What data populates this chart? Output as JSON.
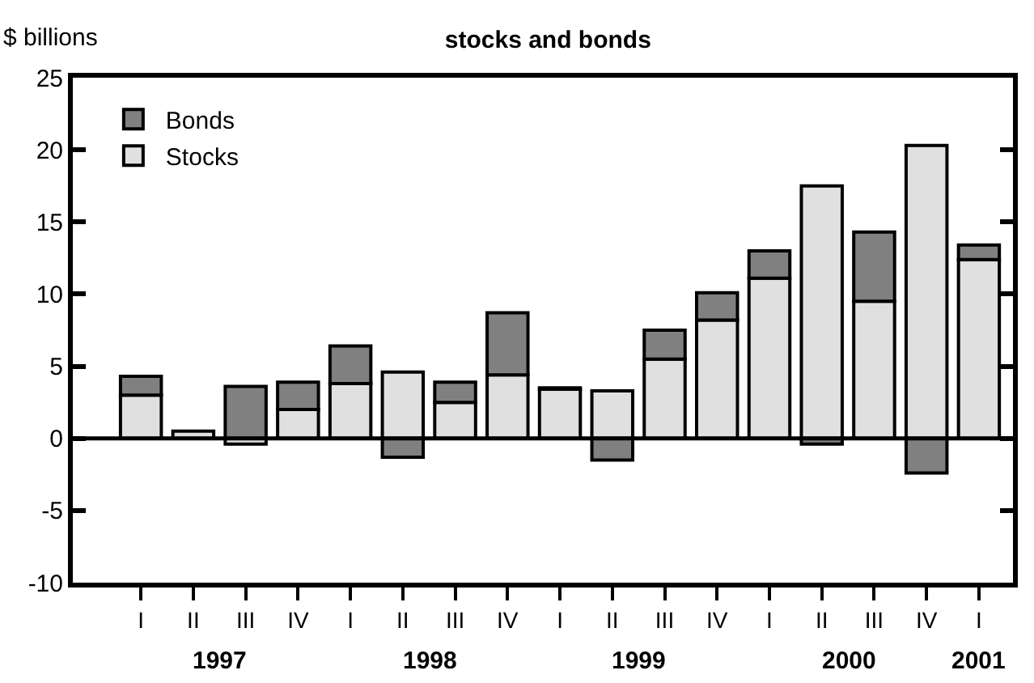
{
  "chart_data": {
    "type": "bar",
    "title": "stocks and bonds",
    "ylabel": "$ billions",
    "categories": [
      "I",
      "II",
      "III",
      "IV",
      "I",
      "II",
      "III",
      "IV",
      "I",
      "II",
      "III",
      "IV",
      "I",
      "II",
      "III",
      "IV",
      "I"
    ],
    "series": [
      {
        "name": "Stocks",
        "color": "#e0e0e0",
        "values": [
          3.0,
          0.5,
          -0.4,
          2.0,
          3.8,
          4.6,
          2.5,
          4.4,
          3.4,
          3.3,
          5.5,
          8.2,
          11.1,
          17.5,
          9.5,
          20.3,
          12.4
        ]
      },
      {
        "name": "Bonds",
        "color": "#808080",
        "values": [
          1.3,
          null,
          3.6,
          1.9,
          2.6,
          -1.3,
          1.4,
          4.3,
          0.1,
          -1.5,
          2.0,
          1.9,
          1.9,
          -0.4,
          4.8,
          -2.4,
          1.0
        ]
      }
    ],
    "stacked": true,
    "ylim": [
      -10,
      25
    ],
    "yticks": [
      -10,
      -5,
      0,
      5,
      10,
      15,
      20,
      25
    ],
    "grid": false,
    "ref_lines": [
      {
        "axis": "y",
        "value": 0
      }
    ],
    "legend": "top left",
    "annotations": [
      "1997",
      "1998",
      "1999",
      "2000",
      "2001"
    ]
  }
}
